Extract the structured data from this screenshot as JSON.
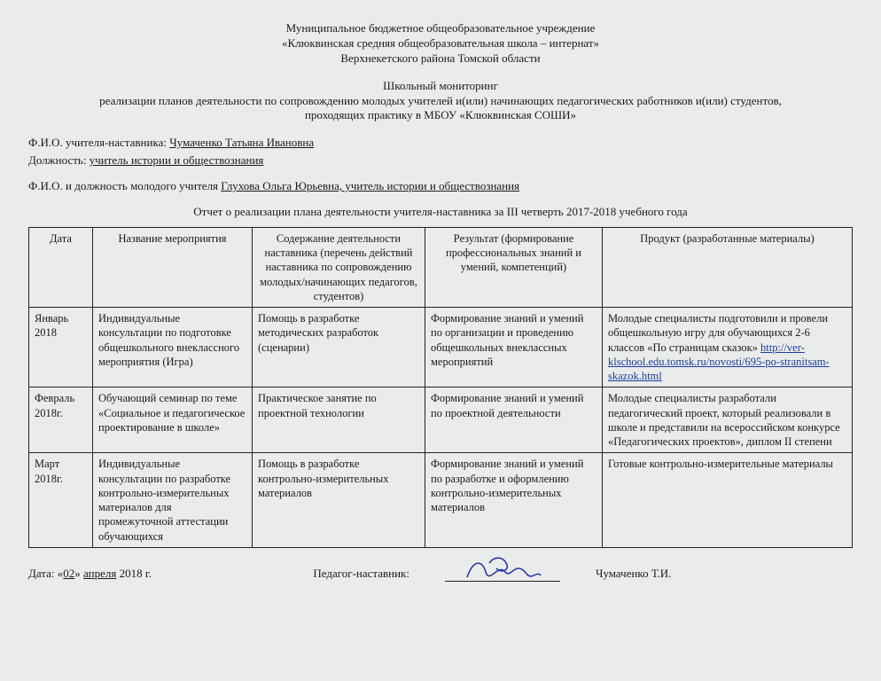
{
  "header": {
    "line1": "Муниципальное бюджетное общеобразовательное учреждение",
    "line2": "«Клюквинская средняя общеобразовательная школа – интернат»",
    "line3": "Верхнекетского района Томской области"
  },
  "subtitle": {
    "line1": "Школьный  мониторинг",
    "line2": "реализации планов деятельности по сопровождению молодых учителей и(или) начинающих педагогических работников и(или) студентов,",
    "line3": "проходящих практику в МБОУ «Клюквинская СОШИ»"
  },
  "mentor": {
    "fio_label": "Ф.И.О. учителя-наставника: ",
    "fio_value": "Чумаченко Татьяна Ивановна",
    "position_label": "Должность: ",
    "position_value": "учитель истории и обществознания"
  },
  "young": {
    "label": "Ф.И.О. и должность молодого учителя  ",
    "value": "Глухова Ольга Юрьевна, учитель истории и обществознания"
  },
  "report_caption": "Отчет о реализации плана деятельности учителя-наставника за III  четверть 2017-2018 учебного года",
  "table": {
    "headers": {
      "date": "Дата",
      "name": "Название мероприятия",
      "content": "Содержание деятельности наставника (перечень действий наставника по сопровождению молодых/начинающих педагогов, студентов)",
      "result": "Результат (формирование профессиональных знаний и умений, компетенций)",
      "product": "Продукт\n(разработанные материалы)"
    },
    "rows": [
      {
        "date": "Январь 2018",
        "name": "Индивидуальные консультации по подготовке общешкольного внеклассного мероприятия (Игра)",
        "content": "Помощь в разработке методических разработок (сценарии)",
        "result": "Формирование знаний и умений по организации и проведению общешкольных внеклассных мероприятий",
        "product_pre": "Молодые специалисты подготовили и провели общешкольную игру для обучающихся 2-6 классов «По страницам сказок» ",
        "product_link": "http://ver-klschool.edu.tomsk.ru/novosti/695-po-stranitsam-skazok.html",
        "product_post": ""
      },
      {
        "date": "Февраль 2018г.",
        "name": "Обучающий семинар по теме «Социальное и педагогическое проектирование в школе»",
        "content": "Практическое занятие по проектной технологии",
        "result": "Формирование знаний и умений по проектной деятельности",
        "product_pre": "Молодые специалисты разработали педагогический проект, который реализовали в школе и представили на всероссийском конкурсе «Педагогических проектов», диплом II степени",
        "product_link": "",
        "product_post": ""
      },
      {
        "date": "Март 2018г.",
        "name": "Индивидуальные консультации по разработке контрольно-измерительных материалов для промежуточной аттестации обучающихся",
        "content": "Помощь в разработке контрольно-измерительных материалов",
        "result": "Формирование знаний и умений по разработке и оформлению контрольно-измерительных материалов",
        "product_pre": "Готовые контрольно-измерительные материалы",
        "product_link": "",
        "product_post": ""
      }
    ]
  },
  "footer": {
    "date_prefix": "Дата: «",
    "date_day": "02",
    "date_mid": "» ",
    "date_month": "апреля",
    "date_suffix": " 2018 г.",
    "role_label": "Педагог-наставник:",
    "signer": "Чумаченко Т.И."
  },
  "style": {
    "link_color": "#1a3c9c",
    "ink_color": "#2a3aa8"
  }
}
